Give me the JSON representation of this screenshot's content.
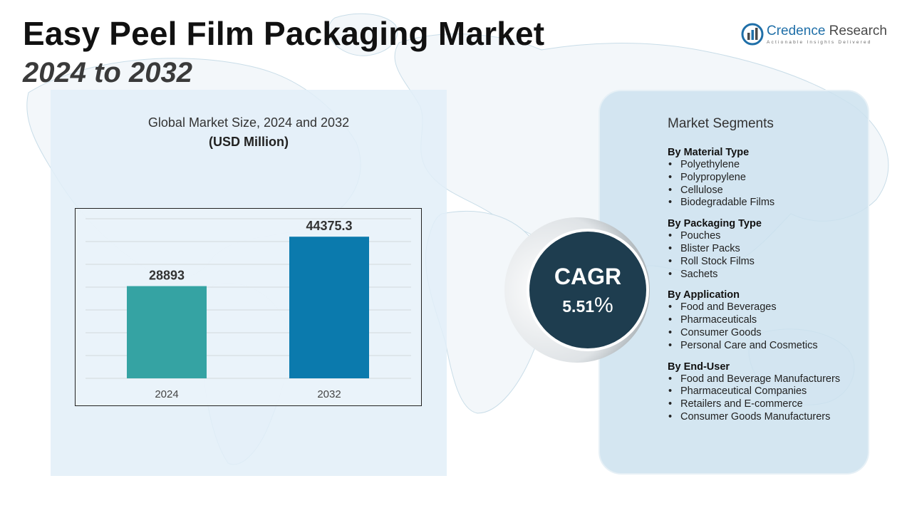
{
  "title": "Easy Peel Film Packaging Market",
  "subtitle": "2024 to 2032",
  "logo": {
    "name_part1": "Credence",
    "name_part2": "Research",
    "tagline": "Actionable Insights Delivered",
    "icon": "bar-chart-globe-logo-icon"
  },
  "colors": {
    "bar_2024": "#35a3a3",
    "bar_2032": "#0b7aad",
    "cagr_circle": "#1e3d4f",
    "logo_blue": "#1f6fa8"
  },
  "chart_data": {
    "type": "bar",
    "title": "Global Market Size, 2024 and 2032",
    "unit": "(USD Million)",
    "categories": [
      "2024",
      "2032"
    ],
    "values": [
      28893,
      44375.3
    ],
    "value_labels": [
      "28893",
      "44375.3"
    ],
    "ylim": [
      0,
      50000
    ],
    "grid": true,
    "legend": "none"
  },
  "cagr": {
    "label": "CAGR",
    "value": "5.51",
    "percent_sign": "%"
  },
  "segments": {
    "heading": "Market Segments",
    "groups": [
      {
        "title": "By Material Type",
        "items": [
          "Polyethylene",
          "Polypropylene",
          "Cellulose",
          "Biodegradable Films"
        ]
      },
      {
        "title": "By Packaging Type",
        "items": [
          "Pouches",
          "Blister Packs",
          "Roll Stock Films",
          "Sachets"
        ]
      },
      {
        "title": "By Application",
        "items": [
          "Food and Beverages",
          "Pharmaceuticals",
          "Consumer Goods",
          "Personal Care and Cosmetics"
        ]
      },
      {
        "title": "By End-User",
        "items": [
          "Food and Beverage Manufacturers",
          "Pharmaceutical Companies",
          "Retailers and E-commerce",
          "Consumer Goods Manufacturers"
        ]
      }
    ]
  }
}
